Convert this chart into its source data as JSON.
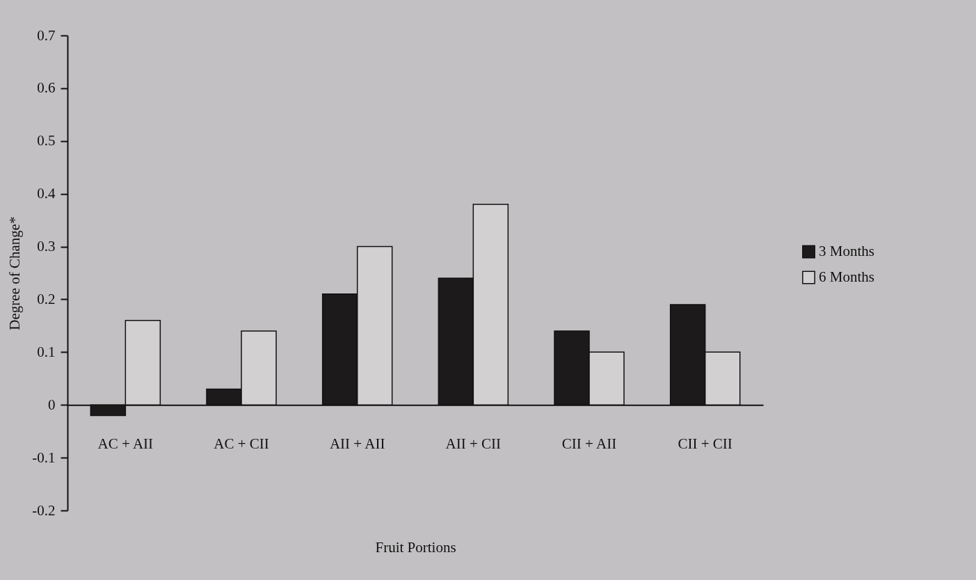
{
  "chart_data": {
    "type": "bar",
    "xlabel": "Fruit Portions",
    "ylabel": "Degree of Change*",
    "categories": [
      "AC + AII",
      "AC + CII",
      "AII + AII",
      "AII + CII",
      "CII + AII",
      "CII + CII"
    ],
    "series": [
      {
        "name": "3 Months",
        "color": "#1c1a1a",
        "values": [
          -0.02,
          0.03,
          0.21,
          0.24,
          0.14,
          0.19
        ]
      },
      {
        "name": "6 Months",
        "color": "#d2d0d0",
        "values": [
          0.16,
          0.14,
          0.3,
          0.38,
          0.1,
          0.1
        ]
      }
    ],
    "ylim": [
      -0.2,
      0.7
    ],
    "yticks": [
      -0.2,
      -0.1,
      0,
      0.1,
      0.2,
      0.3,
      0.4,
      0.5,
      0.6,
      0.7
    ],
    "grid": false,
    "legend": "right"
  }
}
